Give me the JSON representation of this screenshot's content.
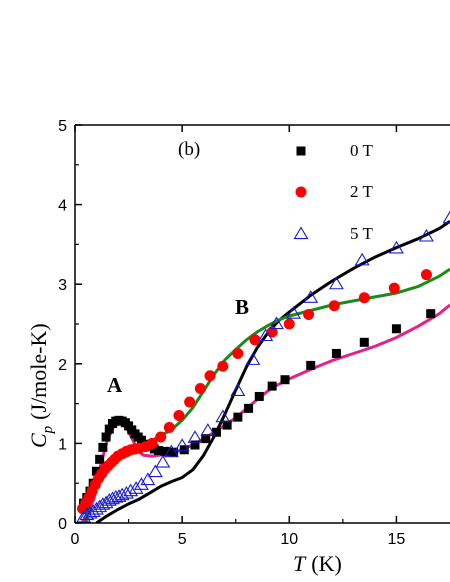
{
  "chart_data": {
    "type": "scatter",
    "panel_tag": "(b)",
    "xlabel": {
      "symbol": "T",
      "unit": "(K)"
    },
    "ylabel": {
      "symbol": "C",
      "subscript": "p",
      "unit": "(J/mole-K)"
    },
    "xlim": [
      0,
      17.5
    ],
    "ylim": [
      0,
      5
    ],
    "xticks": [
      0,
      5,
      10,
      15
    ],
    "yticks": [
      0,
      1,
      2,
      3,
      4,
      5
    ],
    "xtick_labels": [
      "0",
      "5",
      "10",
      "15"
    ],
    "ytick_labels": [
      "0",
      "1",
      "2",
      "3",
      "4",
      "5"
    ],
    "annotations": [
      {
        "text": "A",
        "x": 2.0,
        "y": 1.6
      },
      {
        "text": "B",
        "x": 7.9,
        "y": 2.65
      }
    ],
    "series": [
      {
        "name": "0 T",
        "marker": "square",
        "color": "#000000",
        "points": [
          [
            0.4,
            0.25
          ],
          [
            0.55,
            0.32
          ],
          [
            0.7,
            0.4
          ],
          [
            0.85,
            0.5
          ],
          [
            1.0,
            0.65
          ],
          [
            1.15,
            0.8
          ],
          [
            1.3,
            0.95
          ],
          [
            1.45,
            1.08
          ],
          [
            1.6,
            1.18
          ],
          [
            1.75,
            1.25
          ],
          [
            1.9,
            1.28
          ],
          [
            2.05,
            1.29
          ],
          [
            2.2,
            1.28
          ],
          [
            2.35,
            1.26
          ],
          [
            2.5,
            1.22
          ],
          [
            2.65,
            1.17
          ],
          [
            2.8,
            1.12
          ],
          [
            2.95,
            1.08
          ],
          [
            3.1,
            1.04
          ],
          [
            3.3,
            0.99
          ],
          [
            3.5,
            0.96
          ],
          [
            3.7,
            0.93
          ],
          [
            3.9,
            0.91
          ],
          [
            4.2,
            0.9
          ],
          [
            4.6,
            0.89
          ],
          [
            5.1,
            0.92
          ],
          [
            5.6,
            0.98
          ],
          [
            6.1,
            1.06
          ],
          [
            6.6,
            1.14
          ],
          [
            7.1,
            1.23
          ],
          [
            7.6,
            1.33
          ],
          [
            8.1,
            1.44
          ],
          [
            8.6,
            1.59
          ],
          [
            9.2,
            1.72
          ],
          [
            9.8,
            1.8
          ],
          [
            11.0,
            1.98
          ],
          [
            12.2,
            2.13
          ],
          [
            13.5,
            2.27
          ],
          [
            15.0,
            2.44
          ],
          [
            16.6,
            2.63
          ]
        ]
      },
      {
        "name": "2 T",
        "marker": "circle",
        "color": "#ff0000",
        "points": [
          [
            0.35,
            0.18
          ],
          [
            0.5,
            0.25
          ],
          [
            0.65,
            0.32
          ],
          [
            0.8,
            0.4
          ],
          [
            0.95,
            0.48
          ],
          [
            1.1,
            0.56
          ],
          [
            1.25,
            0.62
          ],
          [
            1.4,
            0.68
          ],
          [
            1.55,
            0.72
          ],
          [
            1.7,
            0.76
          ],
          [
            1.85,
            0.8
          ],
          [
            2.0,
            0.84
          ],
          [
            2.2,
            0.87
          ],
          [
            2.4,
            0.9
          ],
          [
            2.6,
            0.92
          ],
          [
            2.8,
            0.93
          ],
          [
            3.0,
            0.94
          ],
          [
            3.3,
            0.96
          ],
          [
            3.6,
            1.0
          ],
          [
            4.0,
            1.08
          ],
          [
            4.4,
            1.2
          ],
          [
            4.85,
            1.35
          ],
          [
            5.35,
            1.52
          ],
          [
            5.85,
            1.69
          ],
          [
            6.3,
            1.85
          ],
          [
            6.9,
            1.97
          ],
          [
            7.6,
            2.13
          ],
          [
            8.4,
            2.3
          ],
          [
            9.2,
            2.4
          ],
          [
            10.0,
            2.5
          ],
          [
            10.9,
            2.62
          ],
          [
            12.1,
            2.73
          ],
          [
            13.5,
            2.83
          ],
          [
            14.9,
            2.95
          ],
          [
            16.4,
            3.12
          ]
        ]
      },
      {
        "name": "5 T",
        "marker": "triangle",
        "color": "#1a1acc",
        "points": [
          [
            0.4,
            0.07
          ],
          [
            0.55,
            0.1
          ],
          [
            0.7,
            0.12
          ],
          [
            0.85,
            0.14
          ],
          [
            1.0,
            0.17
          ],
          [
            1.15,
            0.2
          ],
          [
            1.3,
            0.23
          ],
          [
            1.45,
            0.25
          ],
          [
            1.6,
            0.28
          ],
          [
            1.75,
            0.3
          ],
          [
            1.9,
            0.32
          ],
          [
            2.05,
            0.33
          ],
          [
            2.2,
            0.35
          ],
          [
            2.4,
            0.37
          ],
          [
            2.6,
            0.4
          ],
          [
            2.85,
            0.43
          ],
          [
            3.1,
            0.48
          ],
          [
            3.4,
            0.54
          ],
          [
            3.75,
            0.64
          ],
          [
            4.1,
            0.76
          ],
          [
            4.5,
            0.89
          ],
          [
            5.0,
            0.97
          ],
          [
            5.6,
            1.07
          ],
          [
            6.2,
            1.16
          ],
          [
            6.9,
            1.33
          ],
          [
            7.6,
            1.66
          ],
          [
            8.3,
            2.05
          ],
          [
            8.9,
            2.35
          ],
          [
            9.4,
            2.5
          ],
          [
            10.2,
            2.63
          ],
          [
            11.0,
            2.83
          ],
          [
            12.2,
            3.0
          ],
          [
            13.4,
            3.3
          ],
          [
            15.0,
            3.45
          ],
          [
            16.4,
            3.6
          ],
          [
            17.5,
            3.83
          ]
        ]
      }
    ],
    "fits": [
      {
        "color": "#e6208a",
        "points": [
          [
            0.3,
            0.0
          ],
          [
            0.6,
            0.09
          ],
          [
            0.9,
            0.32
          ],
          [
            1.2,
            0.73
          ],
          [
            1.5,
            1.03
          ],
          [
            1.8,
            1.21
          ],
          [
            2.1,
            1.25
          ],
          [
            2.4,
            1.2
          ],
          [
            2.7,
            1.04
          ],
          [
            2.95,
            0.9
          ],
          [
            3.2,
            0.85
          ],
          [
            3.6,
            0.84
          ],
          [
            4.2,
            0.86
          ],
          [
            4.8,
            0.9
          ],
          [
            5.5,
            0.98
          ],
          [
            6.5,
            1.14
          ],
          [
            7.5,
            1.32
          ],
          [
            8.5,
            1.55
          ],
          [
            9.2,
            1.7
          ],
          [
            10.0,
            1.81
          ],
          [
            11.0,
            1.93
          ],
          [
            12.0,
            2.04
          ],
          [
            13.0,
            2.13
          ],
          [
            14.0,
            2.22
          ],
          [
            15.0,
            2.33
          ],
          [
            16.0,
            2.47
          ],
          [
            17.0,
            2.63
          ],
          [
            17.5,
            2.74
          ]
        ]
      },
      {
        "color": "#000000",
        "points": [
          [
            1.0,
            0.0
          ],
          [
            1.5,
            0.09
          ],
          [
            2.0,
            0.17
          ],
          [
            2.5,
            0.24
          ],
          [
            3.0,
            0.3
          ],
          [
            3.5,
            0.38
          ],
          [
            4.0,
            0.46
          ],
          [
            4.5,
            0.52
          ],
          [
            5.0,
            0.57
          ],
          [
            5.5,
            0.67
          ],
          [
            6.0,
            0.85
          ],
          [
            6.5,
            1.09
          ],
          [
            7.0,
            1.37
          ],
          [
            7.5,
            1.67
          ],
          [
            8.0,
            1.96
          ],
          [
            8.5,
            2.2
          ],
          [
            9.0,
            2.39
          ],
          [
            9.5,
            2.54
          ],
          [
            10.0,
            2.65
          ],
          [
            11.0,
            2.86
          ],
          [
            12.0,
            3.04
          ],
          [
            13.0,
            3.2
          ],
          [
            14.0,
            3.34
          ],
          [
            15.0,
            3.46
          ],
          [
            16.0,
            3.57
          ],
          [
            17.0,
            3.7
          ],
          [
            17.5,
            3.79
          ]
        ]
      },
      {
        "color": "#1a8a1a",
        "points": [
          [
            0.5,
            0.0
          ],
          [
            1.0,
            0.56
          ],
          [
            1.5,
            0.73
          ],
          [
            2.0,
            0.8
          ],
          [
            2.5,
            0.85
          ],
          [
            3.0,
            0.93
          ],
          [
            3.5,
            1.02
          ],
          [
            4.0,
            1.1
          ],
          [
            4.5,
            1.17
          ],
          [
            5.0,
            1.29
          ],
          [
            5.5,
            1.45
          ],
          [
            6.0,
            1.66
          ],
          [
            6.5,
            1.87
          ],
          [
            7.0,
            2.05
          ],
          [
            7.5,
            2.18
          ],
          [
            8.0,
            2.3
          ],
          [
            8.5,
            2.4
          ],
          [
            9.0,
            2.48
          ],
          [
            9.5,
            2.55
          ],
          [
            10.0,
            2.6
          ],
          [
            11.0,
            2.67
          ],
          [
            12.0,
            2.74
          ],
          [
            13.0,
            2.79
          ],
          [
            14.0,
            2.84
          ],
          [
            15.0,
            2.89
          ],
          [
            16.0,
            2.97
          ],
          [
            17.0,
            3.1
          ],
          [
            17.5,
            3.19
          ]
        ]
      }
    ],
    "legend_position": "top-right"
  }
}
